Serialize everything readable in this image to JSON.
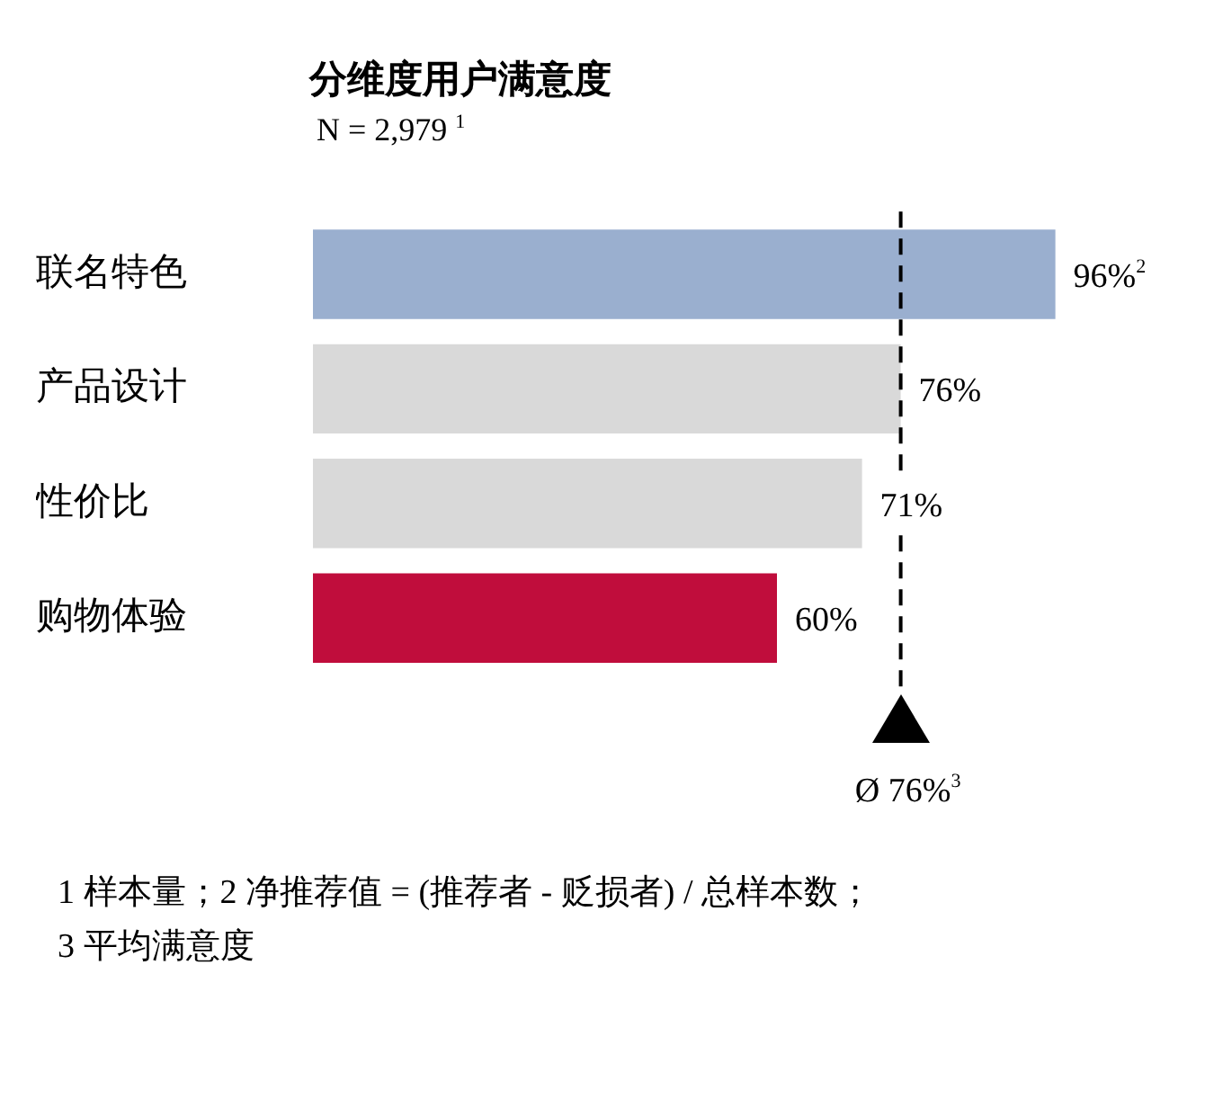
{
  "chart_data": {
    "type": "bar",
    "orientation": "horizontal",
    "title": "分维度用户满意度",
    "subtitle": "N = 2,979 $^{1}$",
    "categories": [
      "联名特色",
      "产品设计",
      "性价比",
      "购物体验"
    ],
    "values": [
      96,
      76,
      71,
      60
    ],
    "colors": [
      "#9aafcf",
      "#d9d9d9",
      "#d9d9d9",
      "#c00d3c"
    ],
    "value_labels": [
      "96%$^{2}$",
      "76%",
      "71%",
      "60%"
    ],
    "tick_labels": "y",
    "legend": false,
    "ref_lines": [
      {
        "axis": "x",
        "value": 76,
        "label": "Ø 76%$^{3}$",
        "line_style": "dashed",
        "color": "#000000"
      }
    ],
    "annotations": [
      "1 样本量；2 净推荐值 = (推荐者 - 贬损者) / 总样本数；",
      "3 平均满意度"
    ]
  }
}
